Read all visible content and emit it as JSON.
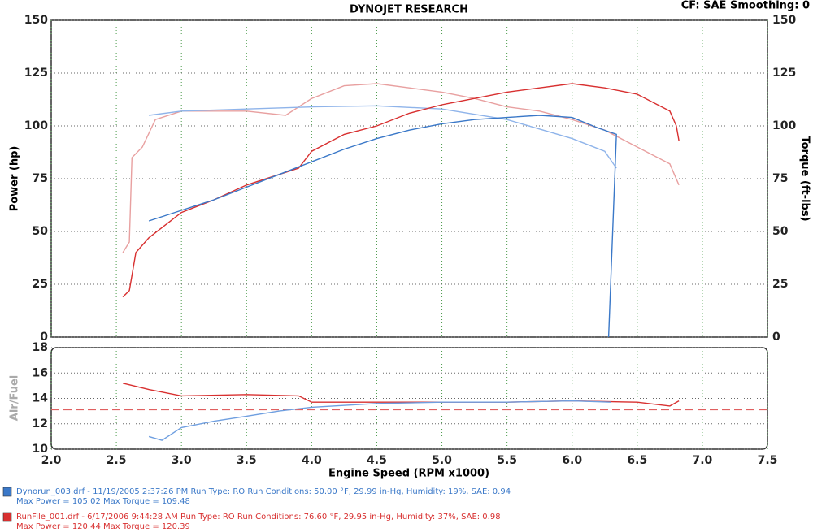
{
  "chart_data": [
    {
      "type": "line",
      "title": "DYNOJET RESEARCH",
      "header": "CF: SAE  Smoothing: 0",
      "ylabel": "Power (hp)",
      "y2label": "Torque (ft-lbs)",
      "xlim": [
        2,
        7.5
      ],
      "ylim": [
        0,
        150
      ],
      "yticks": [
        0,
        25,
        50,
        75,
        100,
        125,
        150
      ],
      "y2lim": [
        0,
        150
      ],
      "y2ticks": [
        0,
        25,
        50,
        75,
        100,
        125,
        150
      ],
      "grid": true,
      "series": [
        {
          "color": "#e8a0a0",
          "axis": "y2",
          "x": [
            2.55,
            2.6,
            2.62,
            2.7,
            2.8,
            3.0,
            3.5,
            3.8,
            4.0,
            4.25,
            4.5,
            4.75,
            5.0,
            5.25,
            5.5,
            5.75,
            6.0,
            6.25,
            6.5,
            6.75,
            6.82
          ],
          "values": [
            40,
            45,
            85,
            90,
            103,
            107,
            107,
            105,
            113,
            119,
            120,
            118,
            116,
            113,
            109,
            107,
            103,
            98,
            90,
            82,
            72
          ]
        },
        {
          "color": "#8fb4ea",
          "axis": "y2",
          "x": [
            2.75,
            3.0,
            3.5,
            4.0,
            4.5,
            5.0,
            5.5,
            6.0,
            6.25,
            6.34
          ],
          "values": [
            105,
            107,
            108,
            109,
            109.5,
            108,
            103,
            94,
            88,
            80
          ]
        },
        {
          "color": "#d83030",
          "x": [
            2.55,
            2.6,
            2.65,
            2.75,
            3.0,
            3.25,
            3.5,
            3.75,
            3.9,
            4.0,
            4.25,
            4.5,
            4.75,
            5.0,
            5.25,
            5.5,
            5.75,
            6.0,
            6.25,
            6.5,
            6.75,
            6.8,
            6.82
          ],
          "values": [
            19,
            22,
            40,
            47,
            59,
            65,
            72,
            77,
            80,
            88,
            96,
            100,
            106,
            110,
            113,
            116,
            118,
            120,
            118,
            115,
            107,
            100,
            93
          ]
        },
        {
          "color": "#3a78c8",
          "x": [
            2.75,
            3.0,
            3.25,
            3.5,
            3.75,
            4.0,
            4.25,
            4.5,
            4.75,
            5.0,
            5.25,
            5.5,
            5.75,
            6.0,
            6.2,
            6.34,
            6.28
          ],
          "values": [
            55,
            60,
            65,
            71,
            77,
            83,
            89,
            94,
            98,
            101,
            103,
            104,
            105,
            104,
            99,
            96,
            0
          ]
        }
      ]
    },
    {
      "type": "line",
      "ylabel": "Air/Fuel",
      "xlabel": "Engine Speed (RPM x1000)",
      "xlim": [
        2,
        7.5
      ],
      "xticks": [
        {
          "value": 2,
          "label": "2.0"
        },
        {
          "value": 2.5,
          "label": "2.5"
        },
        {
          "value": 3,
          "label": "3.0"
        },
        {
          "value": 3.5,
          "label": "3.5"
        },
        {
          "value": 4,
          "label": "4.0"
        },
        {
          "value": 4.5,
          "label": "4.5"
        },
        {
          "value": 5,
          "label": "5.0"
        },
        {
          "value": 5.5,
          "label": "5.5"
        },
        {
          "value": 6,
          "label": "6.0"
        },
        {
          "value": 6.5,
          "label": "6.5"
        },
        {
          "value": 7,
          "label": "7.0"
        },
        {
          "value": 7.5,
          "label": "7.5"
        }
      ],
      "ylim": [
        10,
        18
      ],
      "yticks": [
        10,
        12,
        14,
        16,
        18
      ],
      "grid": true,
      "hline": 13.1,
      "hline_color": "#e06060",
      "series": [
        {
          "color": "#d83030",
          "x": [
            2.55,
            2.75,
            3.0,
            3.5,
            3.9,
            4.0,
            4.5,
            5.0,
            5.5,
            6.0,
            6.5,
            6.75,
            6.82
          ],
          "values": [
            15.2,
            14.7,
            14.2,
            14.3,
            14.2,
            13.7,
            13.7,
            13.7,
            13.7,
            13.8,
            13.7,
            13.4,
            13.8
          ]
        },
        {
          "color": "#6f9fe0",
          "x": [
            2.75,
            2.85,
            3.0,
            3.25,
            3.5,
            3.75,
            4.0,
            4.5,
            5.0,
            5.5,
            6.0,
            6.3
          ],
          "values": [
            11.0,
            10.7,
            11.7,
            12.2,
            12.6,
            13.0,
            13.3,
            13.6,
            13.7,
            13.7,
            13.8,
            13.7
          ]
        }
      ]
    }
  ],
  "legend": [
    {
      "color": "#3a78c8",
      "text": "Dynorun_003.drf - 11/19/2005 2:37:26 PM  Run Type: RO  Run Conditions: 50.00 °F, 29.99 in-Hg,  Humidity:  19%, SAE: 0.94",
      "detail": "Max Power = 105.02  Max Torque = 109.48"
    },
    {
      "color": "#d83030",
      "text": "RunFile_001.drf - 6/17/2006 9:44:28 AM  Run Type: RO  Run Conditions: 76.60 °F, 29.95 in-Hg,  Humidity:  37%, SAE: 0.98",
      "detail": "Max Power = 120.44  Max Torque = 120.39"
    }
  ]
}
